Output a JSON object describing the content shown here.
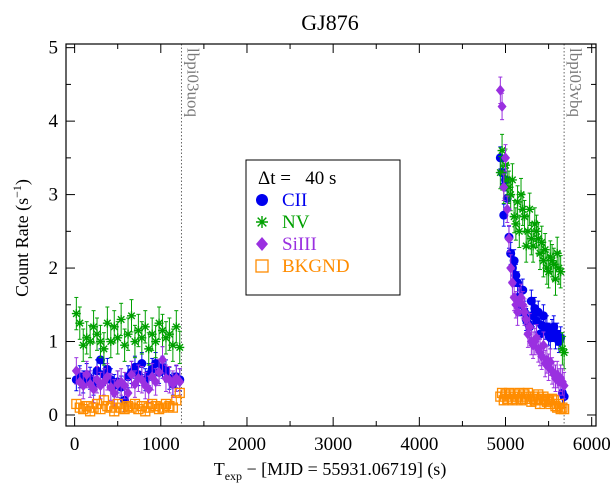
{
  "chart_data": {
    "type": "scatter",
    "title": "GJ876",
    "xlabel": "T",
    "xlabel_sub": "exp",
    "xlabel_rest": " − [MJD = 55931.06719] (s)",
    "ylabel": "Count Rate (s",
    "ylabel_sup": "−1",
    "ylabel_end": ")",
    "xlim": [
      -100,
      6050
    ],
    "ylim": [
      -0.15,
      5.05
    ],
    "xticks": [
      0,
      1000,
      2000,
      3000,
      4000,
      5000,
      6000
    ],
    "yticks": [
      0,
      1,
      2,
      3,
      4,
      5
    ],
    "vlines": [
      {
        "x": 1240,
        "label": "lbpi03uoq"
      },
      {
        "x": 5680,
        "label": "lbpi03vbq"
      }
    ],
    "legend": {
      "header_symbol": "Δt",
      "header_value": " =   40 s",
      "position": "top-center"
    },
    "series": [
      {
        "name": "CII",
        "color": "#0000ee",
        "marker": "circle",
        "x": [
          20,
          60,
          100,
          140,
          180,
          220,
          260,
          300,
          340,
          380,
          420,
          460,
          500,
          540,
          580,
          620,
          660,
          700,
          740,
          780,
          820,
          860,
          900,
          940,
          980,
          1020,
          1060,
          1100,
          1140,
          1180,
          1220,
          4940,
          4960,
          4980,
          5000,
          5020,
          5040,
          5060,
          5080,
          5100,
          5120,
          5140,
          5160,
          5180,
          5200,
          5220,
          5240,
          5260,
          5280,
          5300,
          5320,
          5340,
          5360,
          5380,
          5400,
          5420,
          5440,
          5460,
          5480,
          5500,
          5520,
          5540,
          5560,
          5580,
          5600,
          5620,
          5640,
          5660,
          5680
        ],
        "y": [
          0.48,
          0.52,
          0.45,
          0.55,
          0.5,
          0.42,
          0.6,
          0.75,
          0.55,
          0.62,
          0.48,
          0.4,
          0.45,
          0.38,
          0.2,
          0.52,
          0.58,
          0.65,
          0.55,
          0.7,
          0.48,
          0.55,
          0.62,
          0.7,
          0.58,
          0.65,
          0.6,
          0.5,
          0.42,
          0.52,
          0.48,
          3.5,
          3.3,
          2.72,
          3.2,
          2.95,
          2.42,
          2.2,
          2.0,
          2.1,
          1.9,
          1.8,
          1.6,
          1.5,
          1.7,
          1.4,
          1.3,
          1.25,
          1.2,
          1.55,
          1.35,
          1.45,
          1.28,
          1.4,
          1.1,
          1.22,
          1.35,
          1.18,
          1.2,
          1.1,
          1.05,
          1.15,
          1.2,
          1.05,
          1.1,
          1.0,
          1.05,
          0.3,
          0.25
        ],
        "err": 0.15
      },
      {
        "name": "NV",
        "color": "#00a000",
        "marker": "asterisk",
        "x": [
          20,
          60,
          100,
          140,
          180,
          220,
          260,
          300,
          340,
          380,
          420,
          460,
          500,
          540,
          580,
          620,
          660,
          700,
          740,
          780,
          820,
          860,
          900,
          940,
          980,
          1020,
          1060,
          1100,
          1140,
          1180,
          1220,
          4940,
          4960,
          4980,
          5000,
          5020,
          5040,
          5060,
          5080,
          5100,
          5120,
          5140,
          5160,
          5180,
          5200,
          5220,
          5240,
          5260,
          5280,
          5300,
          5320,
          5340,
          5360,
          5380,
          5400,
          5420,
          5440,
          5460,
          5480,
          5500,
          5520,
          5540,
          5560,
          5580,
          5600,
          5620,
          5640,
          5660,
          5680
        ],
        "y": [
          1.38,
          1.25,
          0.95,
          1.05,
          1.0,
          1.2,
          1.1,
          1.0,
          0.9,
          1.25,
          1.0,
          1.2,
          1.05,
          1.3,
          0.95,
          1.1,
          1.35,
          1.0,
          1.15,
          1.05,
          1.2,
          0.9,
          1.1,
          1.0,
          1.25,
          1.15,
          1.05,
          1.1,
          0.95,
          1.2,
          0.92,
          3.3,
          3.6,
          3.1,
          3.4,
          3.2,
          3.1,
          3.0,
          3.2,
          2.7,
          2.6,
          2.9,
          2.5,
          3.0,
          2.8,
          2.7,
          2.3,
          2.5,
          2.8,
          2.4,
          2.3,
          2.6,
          2.5,
          2.4,
          2.2,
          2.35,
          2.1,
          2.25,
          2.0,
          1.95,
          2.15,
          2.1,
          2.05,
          1.85,
          2.2,
          2.0,
          1.95,
          0.9,
          0.85
        ],
        "err": 0.22
      },
      {
        "name": "SiIII",
        "color": "#9a30e0",
        "marker": "diamond",
        "x": [
          20,
          60,
          100,
          140,
          180,
          220,
          260,
          300,
          340,
          380,
          420,
          460,
          500,
          540,
          580,
          620,
          660,
          700,
          740,
          780,
          820,
          860,
          900,
          940,
          980,
          1020,
          1060,
          1100,
          1140,
          1180,
          1220,
          4940,
          4960,
          4980,
          5000,
          5020,
          5040,
          5060,
          5080,
          5100,
          5120,
          5140,
          5160,
          5180,
          5200,
          5220,
          5240,
          5260,
          5280,
          5300,
          5320,
          5340,
          5360,
          5380,
          5400,
          5420,
          5440,
          5460,
          5480,
          5500,
          5520,
          5540,
          5560,
          5580,
          5600,
          5620,
          5640,
          5660,
          5680
        ],
        "y": [
          0.6,
          0.45,
          0.4,
          0.55,
          0.42,
          0.35,
          0.48,
          0.4,
          0.45,
          0.52,
          0.38,
          0.3,
          0.42,
          0.45,
          0.4,
          0.3,
          0.55,
          0.42,
          0.5,
          0.48,
          0.4,
          0.35,
          0.52,
          0.45,
          0.58,
          0.75,
          0.5,
          0.48,
          0.42,
          0.5,
          0.45,
          4.42,
          4.2,
          3.1,
          3.5,
          2.8,
          2.4,
          2.0,
          1.8,
          1.6,
          1.5,
          1.4,
          1.55,
          1.6,
          1.5,
          1.4,
          1.3,
          1.1,
          1.2,
          1.0,
          0.95,
          1.0,
          1.05,
          0.9,
          0.85,
          0.8,
          0.95,
          0.7,
          0.75,
          0.65,
          0.72,
          0.6,
          0.55,
          0.5,
          0.55,
          0.45,
          0.5,
          0.45,
          0.4
        ],
        "err": 0.18
      },
      {
        "name": "BKGND",
        "color": "#ff8c00",
        "marker": "square",
        "x": [
          20,
          60,
          100,
          140,
          180,
          220,
          260,
          300,
          340,
          380,
          420,
          460,
          500,
          540,
          580,
          620,
          660,
          700,
          740,
          780,
          820,
          860,
          900,
          940,
          980,
          1020,
          1060,
          1100,
          1140,
          1180,
          1220,
          4940,
          4960,
          4980,
          5000,
          5020,
          5040,
          5060,
          5080,
          5100,
          5120,
          5140,
          5160,
          5180,
          5200,
          5220,
          5240,
          5260,
          5280,
          5300,
          5320,
          5340,
          5360,
          5380,
          5400,
          5420,
          5440,
          5460,
          5480,
          5500,
          5520,
          5540,
          5560,
          5580,
          5600,
          5620,
          5640,
          5660,
          5680
        ],
        "y": [
          0.15,
          0.1,
          0.08,
          0.12,
          0.05,
          0.1,
          0.15,
          0.08,
          0.2,
          0.12,
          0.1,
          0.05,
          0.15,
          0.1,
          0.08,
          0.12,
          0.1,
          0.15,
          0.08,
          0.12,
          0.05,
          0.1,
          0.15,
          0.12,
          0.08,
          0.1,
          0.15,
          0.12,
          0.1,
          0.2,
          0.3,
          0.25,
          0.3,
          0.2,
          0.28,
          0.22,
          0.3,
          0.25,
          0.2,
          0.28,
          0.22,
          0.25,
          0.3,
          0.2,
          0.22,
          0.28,
          0.25,
          0.3,
          0.22,
          0.18,
          0.25,
          0.2,
          0.22,
          0.28,
          0.15,
          0.2,
          0.25,
          0.22,
          0.18,
          0.2,
          0.15,
          0.22,
          0.2,
          0.12,
          0.1,
          0.15,
          0.08,
          0.1,
          0.08
        ],
        "err": 0.06
      }
    ]
  }
}
